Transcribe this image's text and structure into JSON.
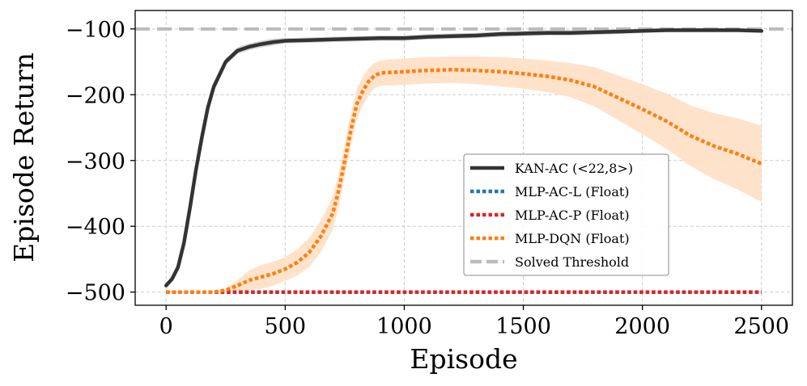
{
  "chart_data": {
    "type": "line",
    "title": "",
    "xlabel": "Episode",
    "ylabel": "Episode Return",
    "xlim": [
      -130,
      2630
    ],
    "ylim": [
      -520,
      -72
    ],
    "xticks": [
      0,
      500,
      1000,
      1500,
      2000,
      2500
    ],
    "yticks": [
      -500,
      -400,
      -300,
      -200,
      -100
    ],
    "xtick_labels": [
      "0",
      "500",
      "1000",
      "1500",
      "2000",
      "2500"
    ],
    "ytick_labels": [
      "−500",
      "−400",
      "−300",
      "−200",
      "−100"
    ],
    "grid": true,
    "legend_position": "center-right",
    "threshold": {
      "name": "Solved Threshold",
      "value": -100,
      "color": "#bbbbbb"
    },
    "series": [
      {
        "name": "KAN-AC (<22,8>)",
        "color": "#333333",
        "style": "solid",
        "band_color": "#cccccc",
        "x": [
          0,
          25,
          50,
          75,
          100,
          125,
          150,
          175,
          200,
          250,
          300,
          350,
          400,
          450,
          500,
          600,
          700,
          800,
          900,
          1000,
          1100,
          1200,
          1300,
          1400,
          1500,
          1600,
          1700,
          1800,
          1900,
          2000,
          2100,
          2200,
          2300,
          2400,
          2500
        ],
        "y": [
          -490,
          -480,
          -462,
          -425,
          -372,
          -315,
          -265,
          -220,
          -188,
          -150,
          -133,
          -127,
          -123,
          -120,
          -118,
          -117,
          -116,
          -115,
          -114,
          -114,
          -112,
          -111,
          -110,
          -108,
          -107,
          -106,
          -106,
          -105,
          -104,
          -103,
          -102,
          -102,
          -102,
          -102,
          -103
        ],
        "spread": [
          2,
          2,
          3,
          3,
          3,
          4,
          4,
          4,
          4,
          5,
          5,
          5,
          5,
          5,
          4,
          4,
          4,
          4,
          4,
          4,
          4,
          4,
          4,
          4,
          4,
          4,
          4,
          4,
          4,
          3,
          3,
          3,
          3,
          3,
          3
        ]
      },
      {
        "name": "MLP-AC-L (Float)",
        "color": "#1f77b4",
        "style": "dotted",
        "x": [
          0,
          2500
        ],
        "y": [
          -500,
          -500
        ]
      },
      {
        "name": "MLP-AC-P (Float)",
        "color": "#d62728",
        "style": "dotted",
        "x": [
          0,
          2500
        ],
        "y": [
          -500,
          -500
        ]
      },
      {
        "name": "MLP-DQN (Float)",
        "color": "#ff7f0e",
        "style": "dotted",
        "band_color": "#ffdfc4",
        "x": [
          0,
          100,
          200,
          250,
          300,
          350,
          400,
          450,
          500,
          550,
          600,
          650,
          700,
          725,
          750,
          775,
          800,
          825,
          850,
          875,
          900,
          950,
          1000,
          1100,
          1200,
          1300,
          1400,
          1500,
          1600,
          1700,
          1800,
          1900,
          2000,
          2100,
          2200,
          2300,
          2400,
          2500
        ],
        "y": [
          -500,
          -500,
          -500,
          -497,
          -490,
          -482,
          -477,
          -472,
          -465,
          -455,
          -440,
          -415,
          -380,
          -345,
          -300,
          -255,
          -215,
          -195,
          -180,
          -171,
          -167,
          -166,
          -165,
          -163,
          -162,
          -163,
          -165,
          -168,
          -172,
          -178,
          -188,
          -205,
          -222,
          -240,
          -262,
          -278,
          -290,
          -305
        ],
        "spread": [
          0,
          0,
          0,
          2,
          8,
          15,
          18,
          18,
          18,
          20,
          22,
          24,
          25,
          25,
          25,
          25,
          23,
          22,
          20,
          19,
          19,
          20,
          20,
          20,
          20,
          21,
          22,
          23,
          24,
          26,
          30,
          34,
          38,
          42,
          46,
          50,
          54,
          58
        ]
      }
    ]
  }
}
